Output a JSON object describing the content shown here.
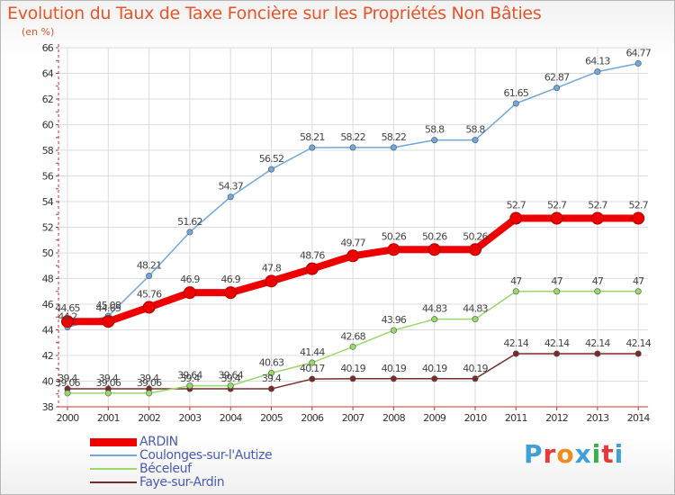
{
  "title": "Evolution du Taux de Taxe Foncière sur les Propriétés Non Bâties",
  "subtitle": "(en %)",
  "logo": {
    "text": "Proxiti",
    "colors": [
      "#3fa0d8",
      "#e83838",
      "#f08c1e",
      "#3fa0d8",
      "#3ab04a",
      "#e83838",
      "#3fa0d8"
    ]
  },
  "colors": {
    "title": "#e8542a",
    "axis": "#cc3333",
    "grid": "#dddddd",
    "legend_text": "#4a5ab8"
  },
  "chart_data": {
    "type": "line",
    "title": "Evolution du Taux de Taxe Foncière sur les Propriétés Non Bâties",
    "ylabel": "(en %)",
    "xlabel": "",
    "ylim": [
      38,
      66
    ],
    "yticks": [
      "38",
      "40",
      "42",
      "44",
      "46",
      "48",
      "50",
      "52",
      "54",
      "56",
      "58",
      "60",
      "62",
      "64",
      "66"
    ],
    "grid": true,
    "legend_position": "bottom-left",
    "categories": [
      "2000",
      "2001",
      "2002",
      "2003",
      "2004",
      "2005",
      "2006",
      "2007",
      "2008",
      "2009",
      "2010",
      "2011",
      "2012",
      "2013",
      "2014"
    ],
    "series": [
      {
        "name": "ARDIN",
        "color": "#ee0000",
        "values": [
          44.65,
          44.65,
          45.76,
          46.9,
          46.9,
          47.8,
          48.76,
          49.77,
          50.26,
          50.26,
          50.26,
          52.7,
          52.7,
          52.7,
          52.7
        ],
        "labels": [
          "44.65",
          "44.65",
          "45.76",
          "46.9",
          "46.9",
          "47.8",
          "48.76",
          "49.77",
          "50.26",
          "50.26",
          "50.26",
          "52.7",
          "52.7",
          "52.7",
          "52.7"
        ]
      },
      {
        "name": "Coulonges-sur-l'Autize",
        "color": "#6fa8dc",
        "values": [
          44.2,
          45.08,
          48.21,
          51.62,
          54.37,
          56.52,
          58.21,
          58.22,
          58.22,
          58.8,
          58.8,
          61.65,
          62.87,
          64.13,
          64.77
        ],
        "labels": [
          "44.2",
          "45.08",
          "48.21",
          "51.62",
          "54.37",
          "56.52",
          "58.21",
          "58.22",
          "58.22",
          "58.8",
          "58.8",
          "61.65",
          "62.87",
          "64.13",
          "64.77"
        ]
      },
      {
        "name": "Béceleuf",
        "color": "#99d96a",
        "values": [
          39.06,
          39.06,
          39.06,
          39.64,
          39.64,
          40.63,
          41.44,
          42.68,
          43.96,
          44.83,
          44.83,
          47,
          47,
          47,
          47
        ],
        "labels": [
          "39.06",
          "39.06",
          "39.06",
          "39.64",
          "39.64",
          "40.63",
          "41.44",
          "42.68",
          "43.96",
          "44.83",
          "44.83",
          "47",
          "47",
          "47",
          "47"
        ]
      },
      {
        "name": "Faye-sur-Ardin",
        "color": "#7a2a2a",
        "values": [
          39.4,
          39.4,
          39.4,
          39.4,
          39.4,
          39.4,
          40.17,
          40.19,
          40.19,
          40.19,
          40.19,
          42.14,
          42.14,
          42.14,
          42.14
        ],
        "labels": [
          "39.4",
          "39.4",
          "39.4",
          "39.4",
          "39.4",
          "39.4",
          "40.17",
          "40.19",
          "40.19",
          "40.19",
          "40.19",
          "42.14",
          "42.14",
          "42.14",
          "42.14"
        ]
      }
    ]
  }
}
